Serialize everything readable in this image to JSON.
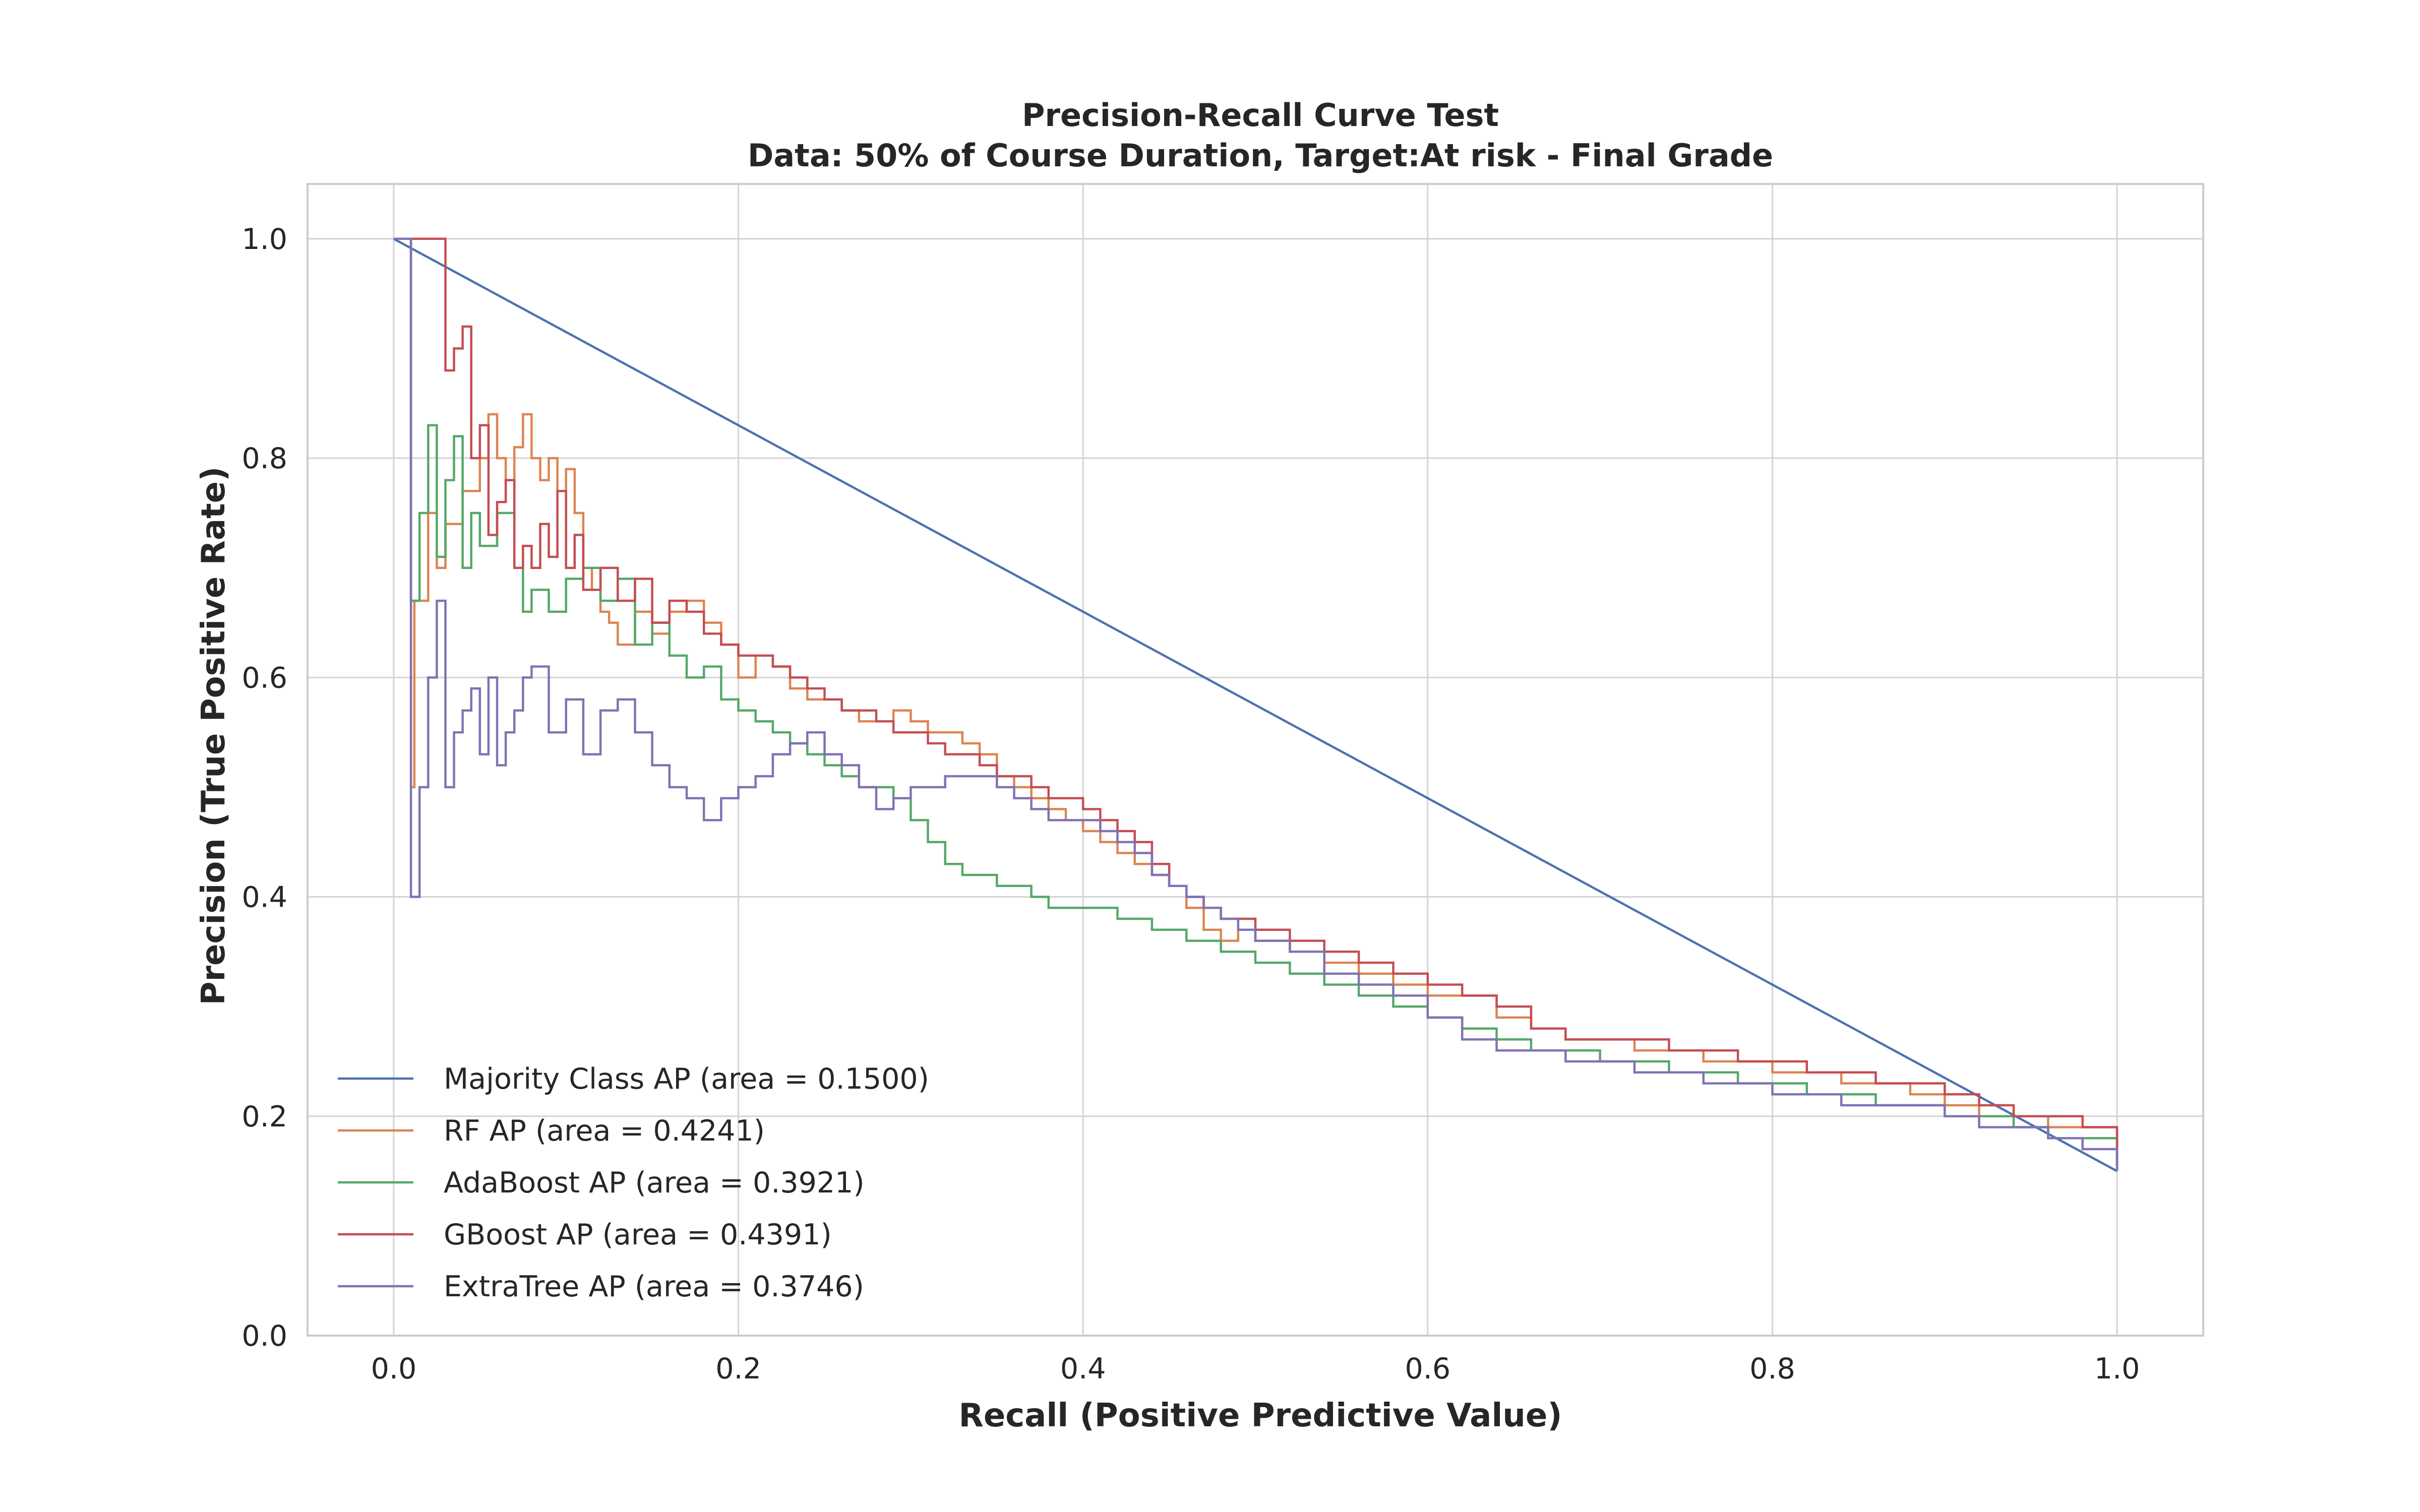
{
  "chart_data": {
    "type": "line",
    "title": "Precision-Recall Curve Test",
    "subtitle": "Data: 50% of Course Duration, Target:At risk - Final Grade",
    "xlabel": "Recall (Positive Predictive Value)",
    "ylabel": "Precision (True Positive Rate)",
    "xlim": [
      -0.05,
      1.05
    ],
    "ylim": [
      0.0,
      1.05
    ],
    "xticks": [
      0.0,
      0.2,
      0.4,
      0.6,
      0.8,
      1.0
    ],
    "xtick_labels": [
      "0.0",
      "0.2",
      "0.4",
      "0.6",
      "0.8",
      "1.0"
    ],
    "yticks": [
      0.0,
      0.2,
      0.4,
      0.6,
      0.8,
      1.0
    ],
    "ytick_labels": [
      "0.0",
      "0.2",
      "0.4",
      "0.6",
      "0.8",
      "1.0"
    ],
    "grid": true,
    "legend_position": "lower-left",
    "series": [
      {
        "name": "Majority Class AP (area = 0.1500)",
        "color": "#4c72b0",
        "step": false,
        "x": [
          0.0,
          1.0
        ],
        "y": [
          1.0,
          0.15
        ]
      },
      {
        "name": "RF AP (area = 0.4241)",
        "color": "#dd8452",
        "step": true,
        "x": [
          0.0,
          0.005,
          0.01,
          0.012,
          0.02,
          0.025,
          0.03,
          0.04,
          0.05,
          0.055,
          0.06,
          0.065,
          0.07,
          0.075,
          0.08,
          0.085,
          0.09,
          0.095,
          0.1,
          0.105,
          0.11,
          0.115,
          0.12,
          0.125,
          0.13,
          0.14,
          0.15,
          0.16,
          0.17,
          0.18,
          0.19,
          0.2,
          0.21,
          0.22,
          0.23,
          0.24,
          0.25,
          0.26,
          0.27,
          0.28,
          0.29,
          0.3,
          0.31,
          0.32,
          0.33,
          0.34,
          0.35,
          0.36,
          0.37,
          0.38,
          0.39,
          0.4,
          0.41,
          0.42,
          0.43,
          0.44,
          0.45,
          0.46,
          0.47,
          0.48,
          0.49,
          0.5,
          0.52,
          0.54,
          0.56,
          0.58,
          0.6,
          0.62,
          0.64,
          0.66,
          0.68,
          0.7,
          0.72,
          0.74,
          0.76,
          0.78,
          0.8,
          0.82,
          0.84,
          0.86,
          0.88,
          0.9,
          0.92,
          0.94,
          0.96,
          0.98,
          1.0
        ],
        "y": [
          1.0,
          1.0,
          0.5,
          0.67,
          0.75,
          0.7,
          0.74,
          0.77,
          0.8,
          0.84,
          0.8,
          0.78,
          0.81,
          0.84,
          0.8,
          0.78,
          0.8,
          0.77,
          0.79,
          0.75,
          0.7,
          0.68,
          0.66,
          0.65,
          0.63,
          0.66,
          0.64,
          0.66,
          0.67,
          0.65,
          0.63,
          0.6,
          0.62,
          0.61,
          0.59,
          0.58,
          0.58,
          0.57,
          0.56,
          0.56,
          0.57,
          0.56,
          0.55,
          0.55,
          0.54,
          0.53,
          0.51,
          0.5,
          0.49,
          0.48,
          0.47,
          0.46,
          0.45,
          0.44,
          0.43,
          0.42,
          0.41,
          0.39,
          0.37,
          0.36,
          0.37,
          0.36,
          0.35,
          0.34,
          0.33,
          0.32,
          0.31,
          0.31,
          0.29,
          0.28,
          0.27,
          0.27,
          0.26,
          0.26,
          0.25,
          0.25,
          0.24,
          0.24,
          0.23,
          0.23,
          0.22,
          0.21,
          0.2,
          0.2,
          0.19,
          0.19,
          0.155
        ]
      },
      {
        "name": "AdaBoost AP (area = 0.3921)",
        "color": "#55a868",
        "step": true,
        "x": [
          0.0,
          0.005,
          0.01,
          0.015,
          0.02,
          0.025,
          0.03,
          0.035,
          0.04,
          0.045,
          0.05,
          0.06,
          0.07,
          0.075,
          0.08,
          0.09,
          0.1,
          0.11,
          0.12,
          0.13,
          0.14,
          0.15,
          0.16,
          0.17,
          0.18,
          0.19,
          0.2,
          0.21,
          0.22,
          0.23,
          0.24,
          0.25,
          0.26,
          0.27,
          0.28,
          0.29,
          0.3,
          0.31,
          0.32,
          0.33,
          0.34,
          0.35,
          0.36,
          0.37,
          0.38,
          0.39,
          0.4,
          0.42,
          0.44,
          0.46,
          0.48,
          0.5,
          0.52,
          0.54,
          0.56,
          0.58,
          0.6,
          0.62,
          0.64,
          0.66,
          0.68,
          0.7,
          0.72,
          0.74,
          0.76,
          0.78,
          0.8,
          0.82,
          0.84,
          0.86,
          0.88,
          0.9,
          0.92,
          0.94,
          0.96,
          0.98,
          1.0
        ],
        "y": [
          1.0,
          1.0,
          0.67,
          0.75,
          0.83,
          0.71,
          0.78,
          0.82,
          0.7,
          0.75,
          0.72,
          0.75,
          0.7,
          0.66,
          0.68,
          0.66,
          0.69,
          0.7,
          0.67,
          0.69,
          0.63,
          0.65,
          0.62,
          0.6,
          0.61,
          0.58,
          0.57,
          0.56,
          0.55,
          0.54,
          0.53,
          0.52,
          0.51,
          0.5,
          0.5,
          0.49,
          0.47,
          0.45,
          0.43,
          0.42,
          0.42,
          0.41,
          0.41,
          0.4,
          0.39,
          0.39,
          0.39,
          0.38,
          0.37,
          0.36,
          0.35,
          0.34,
          0.33,
          0.32,
          0.31,
          0.3,
          0.29,
          0.28,
          0.27,
          0.26,
          0.26,
          0.25,
          0.25,
          0.24,
          0.24,
          0.23,
          0.23,
          0.22,
          0.22,
          0.21,
          0.21,
          0.2,
          0.2,
          0.19,
          0.18,
          0.18,
          0.155
        ]
      },
      {
        "name": "GBoost AP (area = 0.4391)",
        "color": "#c44e52",
        "step": true,
        "x": [
          0.0,
          0.025,
          0.03,
          0.035,
          0.04,
          0.045,
          0.05,
          0.055,
          0.06,
          0.065,
          0.07,
          0.075,
          0.08,
          0.085,
          0.09,
          0.095,
          0.1,
          0.105,
          0.11,
          0.12,
          0.13,
          0.14,
          0.15,
          0.16,
          0.17,
          0.18,
          0.19,
          0.2,
          0.21,
          0.22,
          0.23,
          0.24,
          0.25,
          0.26,
          0.27,
          0.28,
          0.29,
          0.3,
          0.31,
          0.32,
          0.33,
          0.34,
          0.35,
          0.36,
          0.37,
          0.38,
          0.39,
          0.4,
          0.41,
          0.42,
          0.43,
          0.44,
          0.45,
          0.46,
          0.47,
          0.48,
          0.49,
          0.5,
          0.52,
          0.54,
          0.56,
          0.58,
          0.6,
          0.62,
          0.64,
          0.66,
          0.68,
          0.7,
          0.72,
          0.74,
          0.76,
          0.78,
          0.8,
          0.82,
          0.84,
          0.86,
          0.88,
          0.9,
          0.92,
          0.94,
          0.96,
          0.98,
          1.0
        ],
        "y": [
          1.0,
          1.0,
          0.88,
          0.9,
          0.92,
          0.8,
          0.83,
          0.73,
          0.76,
          0.78,
          0.7,
          0.72,
          0.7,
          0.74,
          0.71,
          0.77,
          0.7,
          0.73,
          0.68,
          0.7,
          0.67,
          0.69,
          0.65,
          0.67,
          0.66,
          0.64,
          0.63,
          0.62,
          0.62,
          0.61,
          0.6,
          0.59,
          0.58,
          0.57,
          0.57,
          0.56,
          0.55,
          0.55,
          0.54,
          0.53,
          0.53,
          0.52,
          0.51,
          0.51,
          0.5,
          0.49,
          0.49,
          0.48,
          0.47,
          0.46,
          0.45,
          0.43,
          0.41,
          0.4,
          0.39,
          0.38,
          0.38,
          0.37,
          0.36,
          0.35,
          0.34,
          0.33,
          0.32,
          0.31,
          0.3,
          0.28,
          0.27,
          0.27,
          0.27,
          0.26,
          0.26,
          0.25,
          0.25,
          0.24,
          0.24,
          0.23,
          0.23,
          0.22,
          0.21,
          0.2,
          0.2,
          0.19,
          0.155
        ]
      },
      {
        "name": "ExtraTree AP (area = 0.3746)",
        "color": "#8172b3",
        "step": true,
        "x": [
          0.0,
          0.01,
          0.015,
          0.02,
          0.025,
          0.03,
          0.035,
          0.04,
          0.045,
          0.05,
          0.055,
          0.06,
          0.065,
          0.07,
          0.075,
          0.08,
          0.09,
          0.1,
          0.11,
          0.12,
          0.13,
          0.14,
          0.15,
          0.16,
          0.17,
          0.18,
          0.19,
          0.2,
          0.21,
          0.22,
          0.23,
          0.24,
          0.25,
          0.26,
          0.27,
          0.28,
          0.29,
          0.3,
          0.31,
          0.32,
          0.33,
          0.34,
          0.35,
          0.36,
          0.37,
          0.38,
          0.39,
          0.4,
          0.41,
          0.42,
          0.43,
          0.44,
          0.45,
          0.46,
          0.47,
          0.48,
          0.49,
          0.5,
          0.52,
          0.54,
          0.56,
          0.58,
          0.6,
          0.62,
          0.64,
          0.66,
          0.68,
          0.7,
          0.72,
          0.74,
          0.76,
          0.78,
          0.8,
          0.82,
          0.84,
          0.86,
          0.88,
          0.9,
          0.92,
          0.94,
          0.96,
          0.98,
          1.0
        ],
        "y": [
          1.0,
          0.4,
          0.5,
          0.6,
          0.67,
          0.5,
          0.55,
          0.57,
          0.59,
          0.53,
          0.6,
          0.52,
          0.55,
          0.57,
          0.6,
          0.61,
          0.55,
          0.58,
          0.53,
          0.57,
          0.58,
          0.55,
          0.52,
          0.5,
          0.49,
          0.47,
          0.49,
          0.5,
          0.51,
          0.53,
          0.54,
          0.55,
          0.53,
          0.52,
          0.5,
          0.48,
          0.49,
          0.5,
          0.5,
          0.51,
          0.51,
          0.51,
          0.5,
          0.49,
          0.48,
          0.47,
          0.47,
          0.47,
          0.46,
          0.45,
          0.44,
          0.42,
          0.41,
          0.4,
          0.39,
          0.38,
          0.37,
          0.36,
          0.35,
          0.33,
          0.32,
          0.31,
          0.29,
          0.27,
          0.26,
          0.26,
          0.25,
          0.25,
          0.24,
          0.24,
          0.23,
          0.23,
          0.22,
          0.22,
          0.21,
          0.21,
          0.21,
          0.2,
          0.19,
          0.19,
          0.18,
          0.17,
          0.15
        ]
      }
    ]
  }
}
